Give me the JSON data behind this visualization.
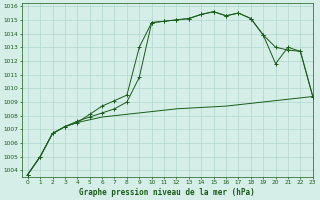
{
  "title": "Graphe pression niveau de la mer (hPa)",
  "bg_color": "#d5eee8",
  "grid_color": "#b0d8cc",
  "line_color": "#1a5c1a",
  "xlim": [
    -0.5,
    23
  ],
  "ylim": [
    1003.5,
    1016.2
  ],
  "ytick_min": 1004,
  "ytick_max": 1016,
  "ytick_step": 1,
  "xticks": [
    0,
    1,
    2,
    3,
    4,
    5,
    6,
    7,
    8,
    9,
    10,
    11,
    12,
    13,
    14,
    15,
    16,
    17,
    18,
    19,
    20,
    21,
    22,
    23
  ],
  "series1_marker": {
    "x": [
      0,
      1,
      2,
      3,
      4,
      5,
      6,
      7,
      8,
      9,
      10,
      11,
      12,
      13,
      14,
      15,
      16,
      17,
      18,
      19,
      20,
      21,
      22,
      23
    ],
    "y": [
      1003.7,
      1005.0,
      1006.7,
      1007.2,
      1007.5,
      1008.1,
      1008.7,
      1009.1,
      1009.5,
      1013.0,
      1014.8,
      1014.9,
      1015.0,
      1015.1,
      1015.4,
      1015.6,
      1015.3,
      1015.5,
      1015.1,
      1013.9,
      1011.8,
      1013.0,
      1012.7,
      1009.4
    ]
  },
  "series2_flat": {
    "x": [
      0,
      1,
      2,
      3,
      4,
      5,
      6,
      7,
      8,
      9,
      10,
      11,
      12,
      13,
      14,
      15,
      16,
      17,
      18,
      19,
      20,
      21,
      22,
      23
    ],
    "y": [
      1003.7,
      1005.0,
      1006.7,
      1007.2,
      1007.5,
      1007.7,
      1007.9,
      1008.0,
      1008.1,
      1008.2,
      1008.3,
      1008.4,
      1008.5,
      1008.55,
      1008.6,
      1008.65,
      1008.7,
      1008.8,
      1008.9,
      1009.0,
      1009.1,
      1009.2,
      1009.3,
      1009.4
    ]
  },
  "series3_marker": {
    "x": [
      0,
      1,
      2,
      3,
      4,
      5,
      6,
      7,
      8,
      9,
      10,
      11,
      12,
      13,
      14,
      15,
      16,
      17,
      18,
      19,
      20,
      21,
      22,
      23
    ],
    "y": [
      1003.7,
      1005.0,
      1006.7,
      1007.2,
      1007.6,
      1007.9,
      1008.2,
      1008.5,
      1009.0,
      1010.8,
      1014.8,
      1014.9,
      1015.0,
      1015.1,
      1015.4,
      1015.6,
      1015.3,
      1015.5,
      1015.1,
      1013.9,
      1013.0,
      1012.8,
      1012.7,
      1009.4
    ]
  }
}
